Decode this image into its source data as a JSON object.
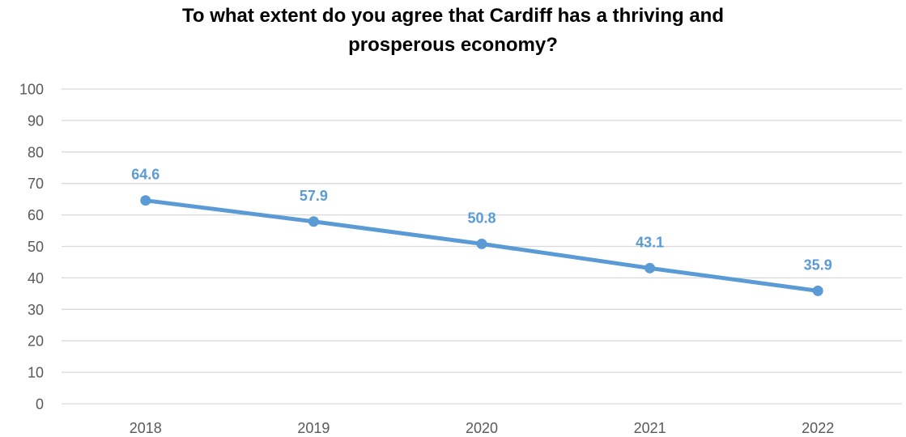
{
  "chart_data": {
    "type": "line",
    "title_lines": [
      "To what extent do you agree that Cardiff has a thriving and",
      "prosperous economy?"
    ],
    "categories": [
      "2018",
      "2019",
      "2020",
      "2021",
      "2022"
    ],
    "series": [
      {
        "values": [
          64.6,
          57.9,
          50.8,
          43.1,
          35.9
        ],
        "labels": [
          "64.6",
          "57.9",
          "50.8",
          "43.1",
          "35.9"
        ]
      }
    ],
    "ylim": [
      0,
      100
    ],
    "yticks": [
      0,
      10,
      20,
      30,
      40,
      50,
      60,
      70,
      80,
      90,
      100
    ],
    "ytick_labels": [
      "0",
      "10",
      "20",
      "30",
      "40",
      "50",
      "60",
      "70",
      "80",
      "90",
      "100"
    ],
    "grid": true,
    "legend": "none",
    "colors": {
      "series": "#5b9bd5",
      "grid": "#d9d9d9",
      "tick_text": "#595959",
      "title_text": "#000000"
    }
  }
}
